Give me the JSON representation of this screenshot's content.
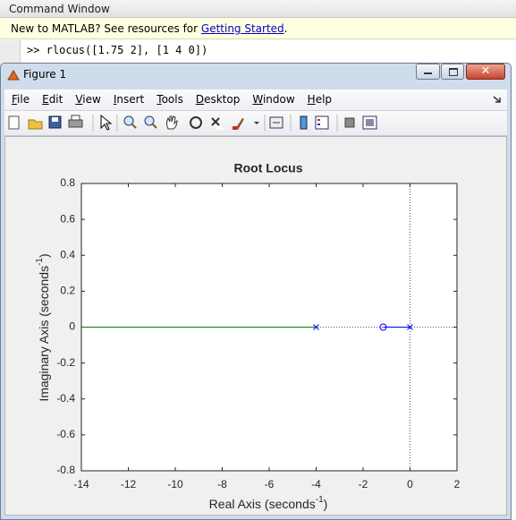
{
  "command_window": {
    "title": "Command Window",
    "notice": {
      "text": "New to MATLAB? See resources for ",
      "link": "Getting Started",
      "end": "."
    },
    "command": ">> rlocus([1.75 2], [1 4 0])"
  },
  "figure": {
    "title": "Figure 1",
    "menu": [
      "File",
      "Edit",
      "View",
      "Insert",
      "Tools",
      "Desktop",
      "Window",
      "Help"
    ]
  },
  "chart_data": {
    "type": "line",
    "title": "Root Locus",
    "xlabel": {
      "text": "Real Axis (seconds",
      "sup": "-1",
      "end": ")"
    },
    "ylabel": {
      "text": "Imaginary Axis (seconds",
      "sup": "-1",
      "end": ")"
    },
    "branches": [
      {
        "color": "#0000ff",
        "x": [
          0,
          -1.143
        ],
        "y": [
          0,
          0
        ]
      },
      {
        "color": "#008000",
        "x": [
          -4,
          -14
        ],
        "y": [
          0,
          0
        ]
      }
    ],
    "poles": {
      "color": "#0000ff",
      "x": [
        -4,
        0
      ],
      "y": [
        0,
        0
      ]
    },
    "zeros": {
      "color": "#0000ff",
      "x": [
        -1.143
      ],
      "y": [
        0
      ]
    },
    "xlim": [
      -14,
      2
    ],
    "xticks": [
      -14,
      -12,
      -10,
      -8,
      -6,
      -4,
      -2,
      0,
      2
    ],
    "ylim": [
      -0.8,
      0.8
    ],
    "yticks": [
      -0.8,
      -0.6,
      -0.4,
      -0.2,
      0,
      0.2,
      0.4,
      0.6,
      0.8
    ],
    "grid": false
  }
}
